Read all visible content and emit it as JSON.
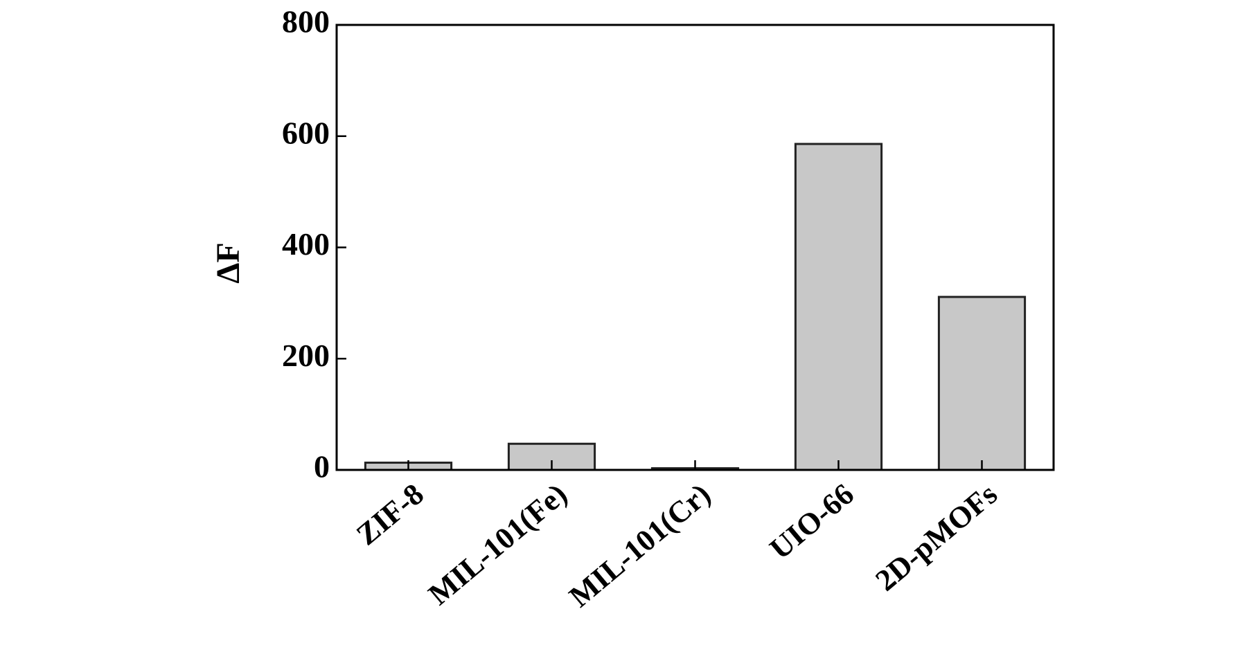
{
  "chart_data": {
    "type": "bar",
    "y_label": "ΔF",
    "categories": [
      "ZIF-8",
      "MIL-101(Fe)",
      "MIL-101(Cr)",
      "UIO-66",
      "2D-pMOFs"
    ],
    "values": [
      13,
      47,
      3,
      586,
      311
    ],
    "color": "#c8c8c8",
    "ylim": [
      0,
      800
    ],
    "yticks": [
      0,
      200,
      400,
      600,
      800
    ],
    "grid": false
  }
}
